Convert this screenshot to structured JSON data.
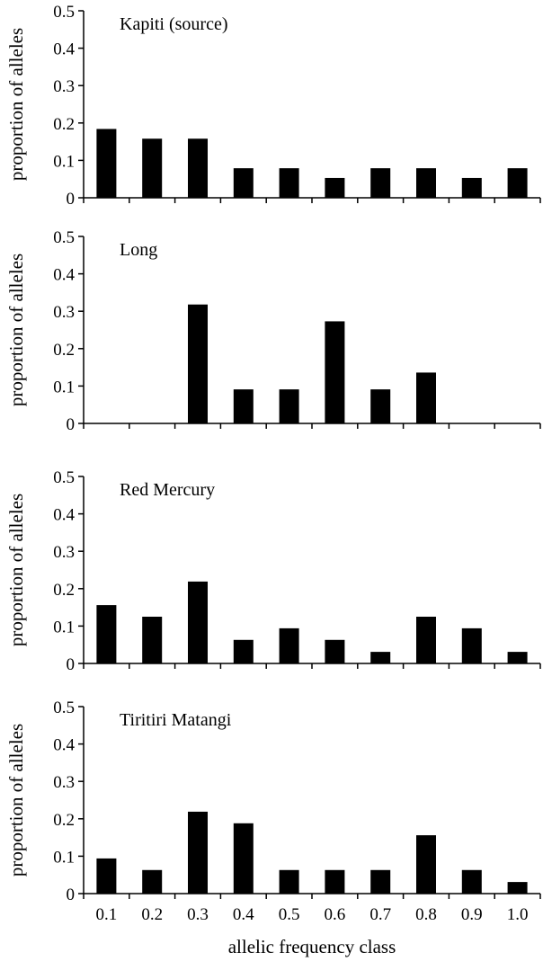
{
  "chart_data": [
    {
      "type": "bar",
      "title": "Kapiti (source)",
      "ylabel": "proportion of alleles",
      "xlabel": "",
      "categories": [
        "0.1",
        "0.2",
        "0.3",
        "0.4",
        "0.5",
        "0.6",
        "0.7",
        "0.8",
        "0.9",
        "1.0"
      ],
      "values": [
        0.184,
        0.158,
        0.158,
        0.079,
        0.079,
        0.053,
        0.079,
        0.079,
        0.053,
        0.079
      ],
      "ylim": [
        0,
        0.5
      ],
      "yticks": [
        "0",
        "0.1",
        "0.2",
        "0.3",
        "0.4",
        "0.5"
      ],
      "show_x_tick_labels": false,
      "grid": false
    },
    {
      "type": "bar",
      "title": "Long",
      "ylabel": "proportion of alleles",
      "xlabel": "",
      "categories": [
        "0.1",
        "0.2",
        "0.3",
        "0.4",
        "0.5",
        "0.6",
        "0.7",
        "0.8",
        "0.9",
        "1.0"
      ],
      "values": [
        0,
        0,
        0.318,
        0.091,
        0.091,
        0.273,
        0.091,
        0.136,
        0,
        0
      ],
      "ylim": [
        0,
        0.5
      ],
      "yticks": [
        "0",
        "0.1",
        "0.2",
        "0.3",
        "0.4",
        "0.5"
      ],
      "show_x_tick_labels": false,
      "grid": false
    },
    {
      "type": "bar",
      "title": "Red Mercury",
      "ylabel": "proportion of alleles",
      "xlabel": "",
      "categories": [
        "0.1",
        "0.2",
        "0.3",
        "0.4",
        "0.5",
        "0.6",
        "0.7",
        "0.8",
        "0.9",
        "1.0"
      ],
      "values": [
        0.156,
        0.125,
        0.219,
        0.063,
        0.094,
        0.063,
        0.031,
        0.125,
        0.094,
        0.031
      ],
      "ylim": [
        0,
        0.5
      ],
      "yticks": [
        "0",
        "0.1",
        "0.2",
        "0.3",
        "0.4",
        "0.5"
      ],
      "show_x_tick_labels": false,
      "grid": false
    },
    {
      "type": "bar",
      "title": "Tiritiri Matangi",
      "ylabel": "proportion of alleles",
      "xlabel": "allelic frequency class",
      "categories": [
        "0.1",
        "0.2",
        "0.3",
        "0.4",
        "0.5",
        "0.6",
        "0.7",
        "0.8",
        "0.9",
        "1.0"
      ],
      "values": [
        0.094,
        0.063,
        0.219,
        0.188,
        0.063,
        0.063,
        0.063,
        0.156,
        0.063,
        0.031
      ],
      "ylim": [
        0,
        0.5
      ],
      "yticks": [
        "0",
        "0.1",
        "0.2",
        "0.3",
        "0.4",
        "0.5"
      ],
      "show_x_tick_labels": true,
      "grid": false
    }
  ]
}
